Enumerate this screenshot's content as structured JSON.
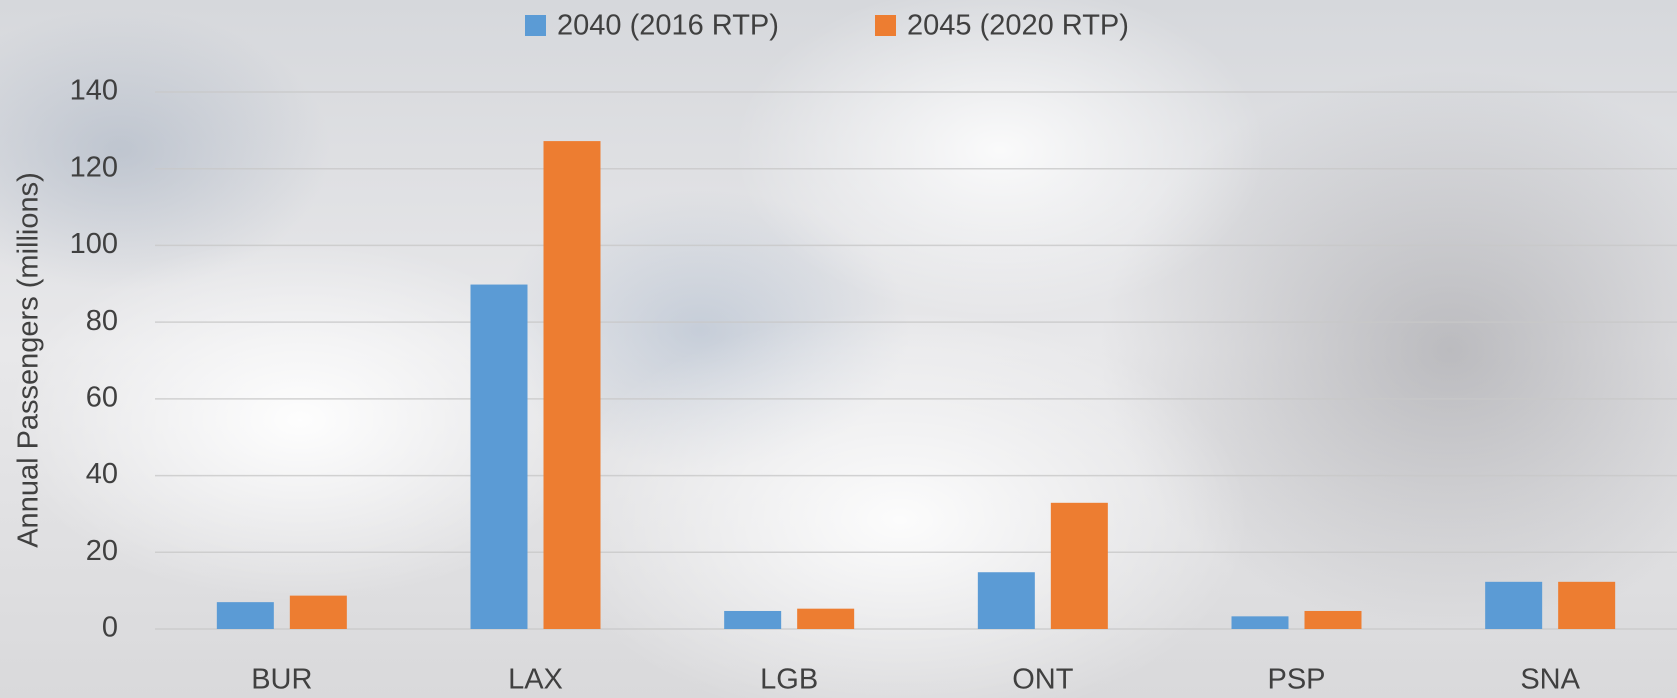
{
  "chart_data": {
    "type": "bar",
    "y_label": "Annual Passengers (millions)",
    "categories": [
      "BUR",
      "LAX",
      "LGB",
      "ONT",
      "PSP",
      "SNA"
    ],
    "series": [
      {
        "name": "2040 (2016 RTP)",
        "color": "#5b9bd5",
        "values": [
          7.0,
          89.8,
          4.7,
          14.8,
          3.3,
          12.3
        ]
      },
      {
        "name": "2045 (2020 RTP)",
        "color": "#ed7d31",
        "values": [
          8.7,
          127.2,
          5.3,
          32.9,
          4.7,
          12.3
        ]
      }
    ],
    "ylim": [
      0,
      140
    ],
    "yticks": [
      0,
      20,
      40,
      60,
      80,
      100,
      120,
      140
    ],
    "grid": true,
    "legend": "top"
  }
}
